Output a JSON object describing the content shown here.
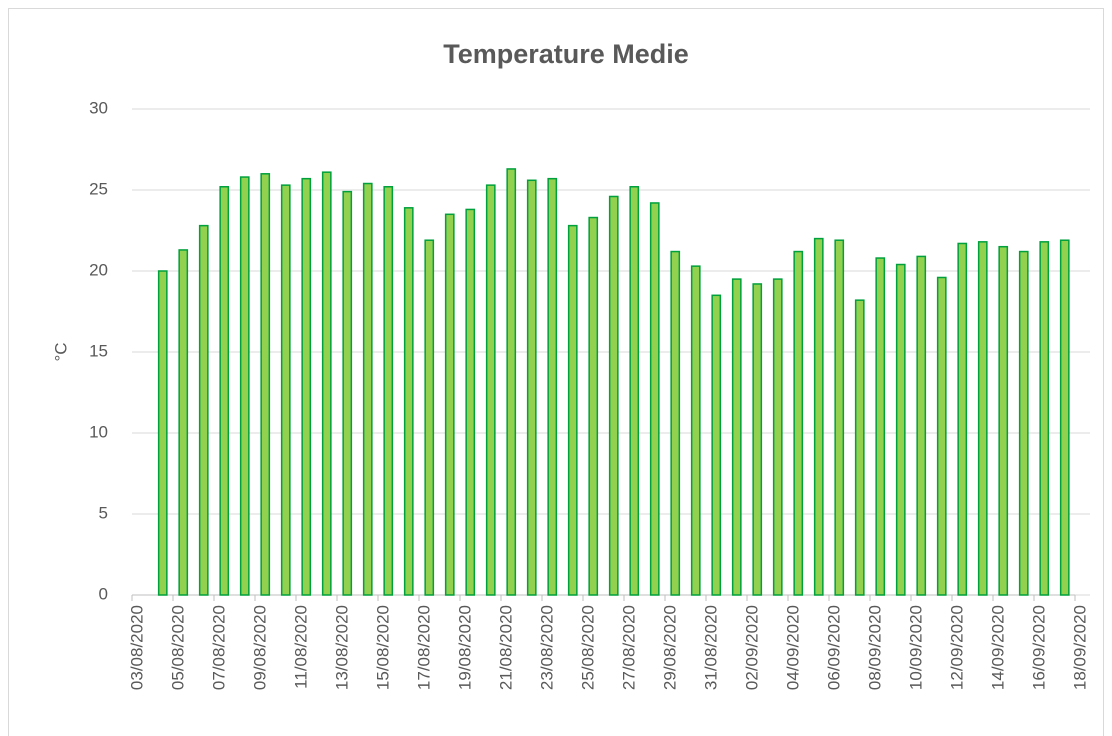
{
  "chart_data": {
    "type": "bar",
    "title": "Temperature Medie",
    "y_label": "°C",
    "x": [
      "04/08/2020",
      "05/08/2020",
      "06/08/2020",
      "07/08/2020",
      "08/08/2020",
      "09/08/2020",
      "10/08/2020",
      "11/08/2020",
      "12/08/2020",
      "13/08/2020",
      "14/08/2020",
      "15/08/2020",
      "16/08/2020",
      "17/08/2020",
      "18/08/2020",
      "19/08/2020",
      "20/08/2020",
      "21/08/2020",
      "22/08/2020",
      "23/08/2020",
      "24/08/2020",
      "25/08/2020",
      "26/08/2020",
      "27/08/2020",
      "28/08/2020",
      "29/08/2020",
      "30/08/2020",
      "31/08/2020",
      "01/09/2020",
      "02/09/2020",
      "03/09/2020",
      "04/09/2020",
      "05/09/2020",
      "06/09/2020",
      "07/09/2020",
      "08/09/2020",
      "09/09/2020",
      "10/09/2020",
      "11/09/2020",
      "12/09/2020",
      "13/09/2020",
      "14/09/2020",
      "15/09/2020",
      "16/09/2020",
      "17/09/2020"
    ],
    "values": [
      20.0,
      21.3,
      22.8,
      25.2,
      25.8,
      26.0,
      25.3,
      25.7,
      26.1,
      24.9,
      25.4,
      25.2,
      23.9,
      21.9,
      23.5,
      23.8,
      25.3,
      26.3,
      25.6,
      25.7,
      22.8,
      23.3,
      24.6,
      25.2,
      24.2,
      21.2,
      20.3,
      18.5,
      19.5,
      19.2,
      19.5,
      21.2,
      22.0,
      21.9,
      18.2,
      20.8,
      20.4,
      20.9,
      19.6,
      21.7,
      21.8,
      21.5,
      21.2,
      21.8,
      21.9
    ],
    "color": "#92d050",
    "edge_color": "#00a03c",
    "xlim": [
      "03/08/2020",
      "18/09/2020"
    ],
    "xticks": [
      "03/08/2020",
      "05/08/2020",
      "07/08/2020",
      "09/08/2020",
      "11/08/2020",
      "13/08/2020",
      "15/08/2020",
      "17/08/2020",
      "19/08/2020",
      "21/08/2020",
      "23/08/2020",
      "25/08/2020",
      "27/08/2020",
      "29/08/2020",
      "31/08/2020",
      "02/09/2020",
      "04/09/2020",
      "06/09/2020",
      "08/09/2020",
      "10/09/2020",
      "12/09/2020",
      "14/09/2020",
      "16/09/2020",
      "18/09/2020"
    ],
    "ylim": [
      0,
      30
    ],
    "yticks": [
      0,
      5,
      10,
      15,
      20,
      25,
      30
    ],
    "grid": true
  }
}
